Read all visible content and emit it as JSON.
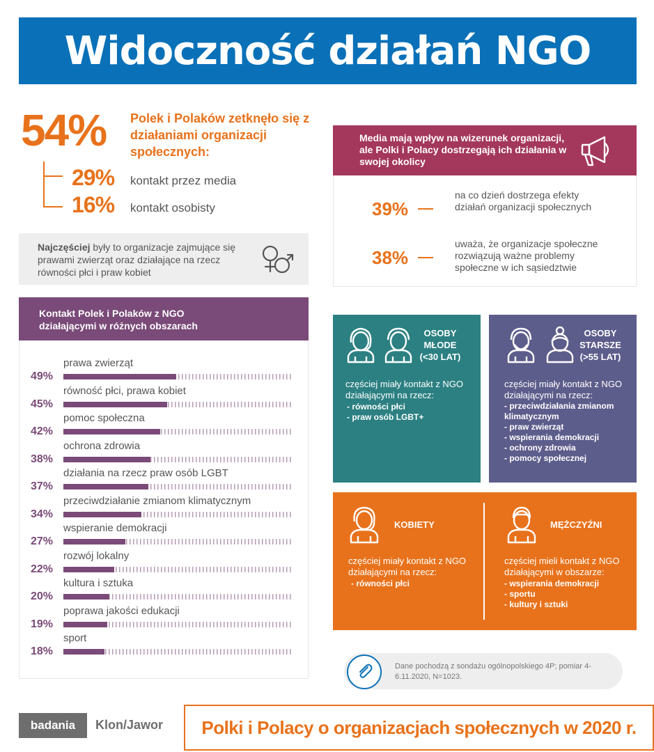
{
  "header": {
    "title": "Widoczność działań NGO"
  },
  "contact": {
    "total_pct": "54%",
    "total_text": "Polek i Polaków zetknęło się z działaniami organizacji społecznych:",
    "media_pct": "29%",
    "media_label": "kontakt przez media",
    "personal_pct": "16%",
    "personal_label": "kontakt osobisty"
  },
  "note": {
    "bold": "Najczęściej",
    "rest": " były to organizacje zajmujące się prawami zwierząt oraz działające na rzecz równości płci i praw kobiet",
    "icon": "gender-symbols-icon"
  },
  "media": {
    "heading": "Media mają wpływ na wizerunek organizacji, ale Polki i Polacy dostrzegają ich działania w swojej okolicy",
    "icon": "megaphone-icon",
    "stats": [
      {
        "pct": "39%",
        "text": "na co dzień dostrzega efekty działań organizacji społecznych"
      },
      {
        "pct": "38%",
        "text": "uważa, że organizacje społeczne rozwiązują ważne problemy społeczne w ich sąsiedztwie"
      }
    ]
  },
  "areas": {
    "title": "Kontakt Polek i Polaków z NGO działającymi w różnych obszarach",
    "items": [
      {
        "label": "prawa zwierząt",
        "pct": "49%",
        "value": 49
      },
      {
        "label": "równość płci, prawa kobiet",
        "pct": "45%",
        "value": 45
      },
      {
        "label": "pomoc społeczna",
        "pct": "42%",
        "value": 42
      },
      {
        "label": "ochrona zdrowia",
        "pct": "38%",
        "value": 38
      },
      {
        "label": "działania na rzecz praw osób LGBT",
        "pct": "37%",
        "value": 37
      },
      {
        "label": "przeciwdziałanie zmianom klimatycznym",
        "pct": "34%",
        "value": 34
      },
      {
        "label": "wspieranie demokracji",
        "pct": "27%",
        "value": 27
      },
      {
        "label": "rozwój lokalny",
        "pct": "22%",
        "value": 22
      },
      {
        "label": "kultura i sztuka",
        "pct": "20%",
        "value": 20
      },
      {
        "label": "poprawa jakości edukacji",
        "pct": "19%",
        "value": 19
      },
      {
        "label": "sport",
        "pct": "18%",
        "value": 18
      }
    ]
  },
  "young": {
    "title_line1": "OSOBY",
    "title_line2": "MŁODE",
    "title_line3": "(<30 LAT)",
    "intro": "częściej miały kontakt z NGO działającymi na rzecz:",
    "items": [
      "- równości płci",
      "- praw osób LGBT+"
    ]
  },
  "old": {
    "title_line1": "OSOBY",
    "title_line2": "STARSZE",
    "title_line3": "(>55 LAT)",
    "intro": "częściej miały kontakt z NGO działającymi na rzecz:",
    "items": [
      "- przeciwdziałania zmianom klimatycznym",
      "- praw zwierząt",
      "- wspierania demokracji",
      "- ochrony zdrowia",
      "- pomocy społecznej"
    ]
  },
  "women": {
    "title": "KOBIETY",
    "intro": "częściej miały kontakt z NGO działającymi na rzecz:",
    "items": [
      "- równości płci"
    ]
  },
  "men": {
    "title": "MĘŻCZYŹNI",
    "intro": "częściej mieli kontakt z NGO działającymi w obszarze:",
    "items": [
      "- wspierania demokracji",
      "- sportu",
      "- kultury i sztuki"
    ]
  },
  "source": {
    "icon": "paperclip-icon",
    "text": "Dane pochodzą z sondażu ogólnopolskiego 4P; pomiar 4-6.11.2020, N=1023."
  },
  "footer": {
    "badge": "badania",
    "brand": "Klon/Jawor",
    "title": "Polki i Polacy o organizacjach społecznych w 2020 r."
  },
  "colors": {
    "blue": "#0a71b8",
    "orange": "#e8721b",
    "plum": "#7a4a78",
    "crimson": "#a4375c",
    "teal": "#2c8082",
    "slate": "#5d5d8c"
  }
}
